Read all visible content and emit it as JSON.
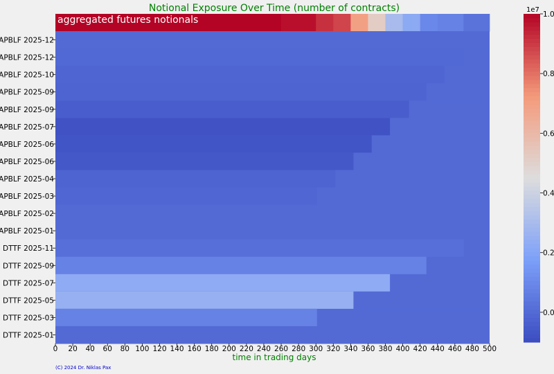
{
  "chart_data": {
    "type": "heatmap",
    "title": "Notional Exposure Over Time (number of contracts)",
    "xlabel": "time in trading days",
    "ylabel": "",
    "xlim": [
      0,
      500
    ],
    "x_ticks": [
      0,
      20,
      40,
      60,
      80,
      100,
      120,
      140,
      160,
      180,
      200,
      220,
      240,
      260,
      280,
      300,
      320,
      340,
      360,
      380,
      400,
      420,
      440,
      460,
      480,
      500
    ],
    "annotation": "aggregated futures notionals",
    "credit": "(C) 2024 Dr. Niklas Pax",
    "colorbar": {
      "colormap": "coolwarm",
      "min": -0.1,
      "max": 1.0,
      "ticks": [
        0.0,
        0.2,
        0.4,
        0.6,
        0.8,
        1.0
      ],
      "tick_labels": [
        "0.0",
        "0.2",
        "0.4",
        "0.6",
        "0.8",
        "1.0"
      ],
      "exponent_label": "1e7"
    },
    "background_value": 0.0,
    "rows": [
      {
        "label": "",
        "segments": [
          [
            0,
            260,
            1.0
          ],
          [
            260,
            300,
            0.98
          ],
          [
            300,
            320,
            0.92
          ],
          [
            320,
            340,
            0.88
          ],
          [
            340,
            360,
            0.7
          ],
          [
            360,
            380,
            0.52
          ],
          [
            380,
            400,
            0.3
          ],
          [
            400,
            420,
            0.22
          ],
          [
            420,
            440,
            0.1
          ],
          [
            440,
            470,
            0.08
          ],
          [
            470,
            500,
            0.03
          ]
        ]
      },
      {
        "label": "APBLF 2025-12",
        "segments": [
          [
            0,
            495,
            0.0
          ]
        ]
      },
      {
        "label": "APBLF 2025-12",
        "segments": [
          [
            0,
            470,
            -0.005
          ]
        ]
      },
      {
        "label": "APBLF 2025-10",
        "segments": [
          [
            0,
            448,
            -0.015
          ]
        ]
      },
      {
        "label": "APBLF 2025-09",
        "segments": [
          [
            0,
            427,
            -0.02
          ]
        ]
      },
      {
        "label": "APBLF 2025-09",
        "segments": [
          [
            0,
            407,
            -0.04
          ]
        ]
      },
      {
        "label": "APBLF 2025-07",
        "segments": [
          [
            0,
            385,
            -0.08
          ]
        ]
      },
      {
        "label": "APBLF 2025-06",
        "segments": [
          [
            0,
            364,
            -0.07
          ]
        ]
      },
      {
        "label": "APBLF 2025-06",
        "segments": [
          [
            0,
            343,
            -0.06
          ]
        ]
      },
      {
        "label": "APBLF 2025-04",
        "segments": [
          [
            0,
            322,
            -0.02
          ]
        ]
      },
      {
        "label": "APBLF 2025-03",
        "segments": [
          [
            0,
            301,
            -0.01
          ]
        ]
      },
      {
        "label": "APBLF 2025-02",
        "segments": [
          [
            0,
            280,
            0.0
          ]
        ]
      },
      {
        "label": "APBLF 2025-01",
        "segments": [
          [
            0,
            260,
            0.0
          ]
        ]
      },
      {
        "label": "DTTF 2025-11",
        "segments": [
          [
            0,
            470,
            0.02
          ]
        ]
      },
      {
        "label": "DTTF 2025-09",
        "segments": [
          [
            0,
            427,
            0.08
          ]
        ]
      },
      {
        "label": "DTTF 2025-07",
        "segments": [
          [
            0,
            385,
            0.23
          ]
        ]
      },
      {
        "label": "DTTF 2025-05",
        "segments": [
          [
            0,
            343,
            0.25
          ]
        ]
      },
      {
        "label": "DTTF 2025-03",
        "segments": [
          [
            0,
            301,
            0.08
          ]
        ]
      },
      {
        "label": "DTTF 2025-01",
        "segments": [
          [
            0,
            260,
            0.0
          ]
        ]
      }
    ]
  }
}
